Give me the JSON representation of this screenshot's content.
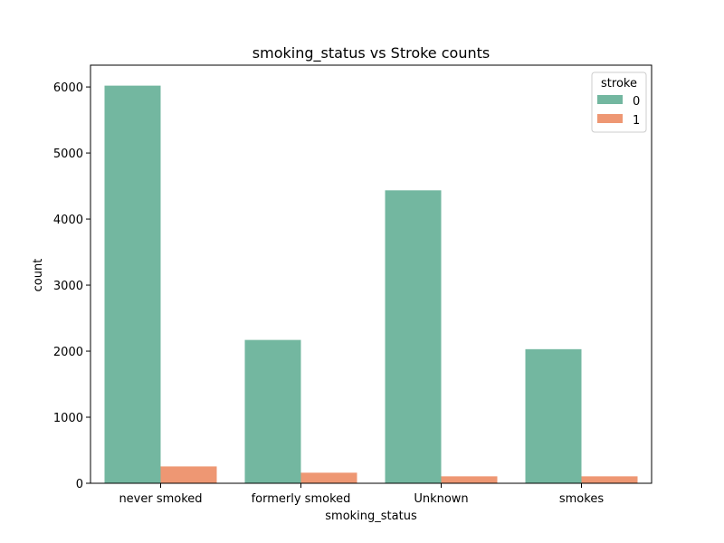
{
  "chart_data": {
    "type": "bar",
    "title": "smoking_status vs Stroke counts",
    "xlabel": "smoking_status",
    "ylabel": "count",
    "categories": [
      "never smoked",
      "formerly smoked",
      "Unknown",
      "smokes"
    ],
    "series": [
      {
        "name": "0",
        "color": "#73b7a0",
        "values": [
          6020,
          2170,
          4435,
          2030
        ]
      },
      {
        "name": "1",
        "color": "#ee9773",
        "values": [
          255,
          160,
          105,
          105
        ]
      }
    ],
    "ylim": [
      0,
      6330
    ],
    "yticks": [
      0,
      1000,
      2000,
      3000,
      4000,
      5000,
      6000
    ],
    "legend": {
      "title": "stroke",
      "position": "top-right"
    },
    "grid": false
  }
}
